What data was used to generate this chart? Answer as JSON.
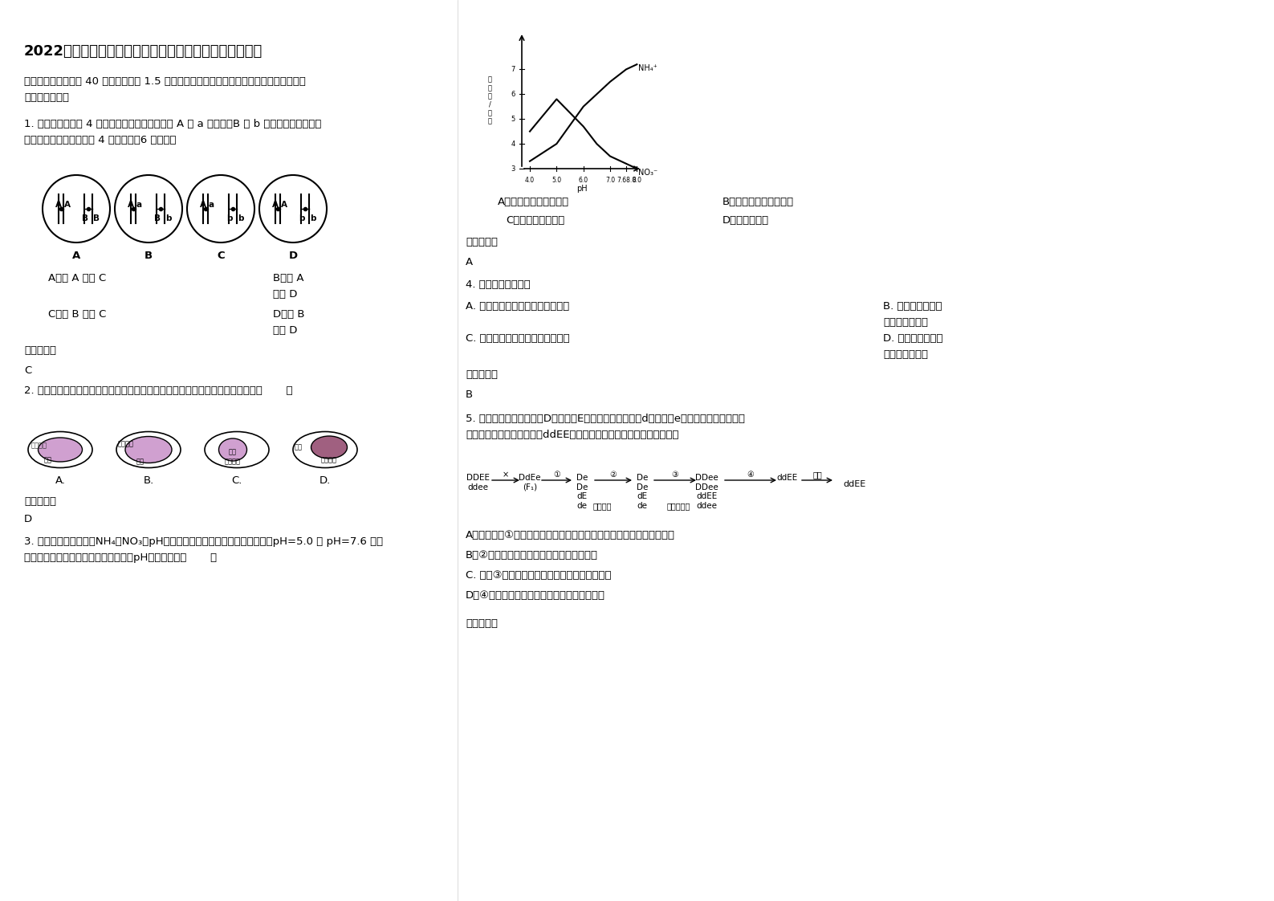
{
  "title": "2022年贵州省贵阳市第二十六中学高一生物测试题含解析",
  "section1": "一、选择题（本题共 40 小题，每小题 1.5 分。在每小题给出的四个选项中，只有一项是符合\n题目要求的。）",
  "q1_text": "1. 下图是同种生物 4 个个体的细胞示意图，其中 A 对 a 为显性、B 对 b 为显性。哪两个图示\n的生物体杂交，后代出现 4 种表现型，6 种基因型",
  "q1_optA": "A．图 A 和图 C",
  "q1_optB": "B．图 A\n和图 D",
  "q1_optC": "C．图 B 和图 C",
  "q1_optD": "D．图 B\n和图 D",
  "q1_ans_label": "参考答案：",
  "q1_ans": "C",
  "q2_text": "2. 下列各图，能正确表示显微镜下观察到的紫色洋葱表皮细胞质壁分离现象的是（       ）",
  "q2_optA": "A.",
  "q2_optB": "B.",
  "q2_optC": "C.",
  "q2_optD": "D.",
  "q2_ans_label": "参考答案：",
  "q2_ans": "D",
  "q3_text": "3. 下图表示某植物吸收NH₄和NO₃对pH值的影响曲线。如果将该植物分别置于pH=5.0 和 pH=7.6 的培\n养液中培养一段时间，则这两瓶培养液pH值的变化是（       ）",
  "q3_optA": "A、前者升高，后者降低",
  "q3_optB": "B、前者降低，后者升高",
  "q3_optC": "C、都升高或都降低",
  "q3_optD": "D、两者都不变",
  "q3_ans_label": "参考答案：",
  "q3_ans": "A",
  "q4_text": "4. 染色质与染色体是",
  "q4_optA": "A. 同种物质在同一时期的两种形态",
  "q4_optB": "B. 同种物质在不同\n时期的两种形态",
  "q4_optC": "C. 不同物质在同一时期的两种形态",
  "q4_optD": "D. 不同物质在不同\n时期的两种形态",
  "q4_ans_label": "参考答案：",
  "q4_ans": "B",
  "q5_text": "5. 下图为利用纯合高秆（D）抗病（E）小麦和纯合矮秆（d）染病（e）小麦快速培育纯合优\n良小麦品种矮秆抗病小麦（ddEE）的示意图，有关此图叙述不正确的是",
  "q5_optA": "A．图中进行①过程的主要目的是让控制不同优良性状的基因组合到一起",
  "q5_optB": "B．②过程中发生了非同源染色体的自由组合",
  "q5_optC": "C. 实施③过程依据的主要生物学原理是细胞增殖",
  "q5_optD": "D．④过程的实施中通常用一定浓度的秋水仙素",
  "q5_ans_label": "参考答案：",
  "bg_color": "#ffffff",
  "text_color": "#000000",
  "font_size_title": 13,
  "font_size_body": 9.5,
  "font_size_small": 8.5
}
